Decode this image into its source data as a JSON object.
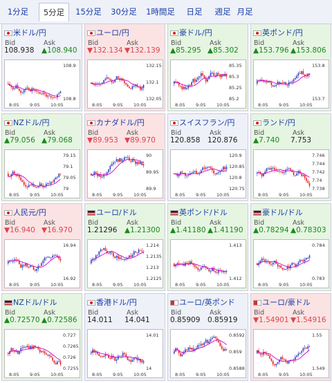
{
  "tabs": [
    "1分足",
    "5分足",
    "15分足",
    "30分足",
    "1時間足",
    "日足",
    "週足",
    "月足"
  ],
  "active_tab": 1,
  "bid_label": "Bid",
  "ask_label": "Ask",
  "colors": {
    "up": "#1a8a1a",
    "down": "#e0434a",
    "candle_up": "#2a3fb8",
    "candle_down": "#e02020",
    "ma": "#d000d0"
  },
  "panels": [
    {
      "title": "米ドル/円",
      "flag": "jp",
      "trend": "flat",
      "bid": "108.938",
      "ask": "▲108.940",
      "bid_dir": "flat",
      "ask_dir": "up",
      "ticks": [
        "108.9",
        "108.8"
      ],
      "seed": 1,
      "xticks": [
        "8:05",
        "9:05",
        "10:05"
      ]
    },
    {
      "title": "ユーロ/円",
      "flag": "jp",
      "trend": "down",
      "bid": "▼132.134",
      "ask": "▼132.139",
      "bid_dir": "down",
      "ask_dir": "down",
      "ticks": [
        "132.15",
        "132.1",
        "132.05"
      ],
      "seed": 2,
      "xticks": [
        "8:05",
        "9:05",
        "10:05"
      ]
    },
    {
      "title": "豪ドル/円",
      "flag": "jp",
      "trend": "up",
      "bid": "▲85.295",
      "ask": "▲85.302",
      "bid_dir": "up",
      "ask_dir": "up",
      "ticks": [
        "85.35",
        "85.3",
        "85.25",
        "85.2"
      ],
      "seed": 3,
      "xticks": [
        "8:05",
        "9:05",
        "10:05"
      ]
    },
    {
      "title": "英ポンド/円",
      "flag": "jp",
      "trend": "up",
      "bid": "▲153.796",
      "ask": "▲153.806",
      "bid_dir": "up",
      "ask_dir": "up",
      "ticks": [
        "153.8",
        "153.7"
      ],
      "seed": 4,
      "xticks": [
        "8:05",
        "9:05",
        "10:05"
      ]
    },
    {
      "title": "NZドル/円",
      "flag": "jp",
      "trend": "up",
      "bid": "▲79.056",
      "ask": "▲79.068",
      "bid_dir": "up",
      "ask_dir": "up",
      "ticks": [
        "79.15",
        "79.1",
        "79.05",
        "79"
      ],
      "seed": 5,
      "xticks": [
        "8:05",
        "9:05",
        "10:05"
      ]
    },
    {
      "title": "カナダドル/円",
      "flag": "jp",
      "trend": "down",
      "bid": "▼89.953",
      "ask": "▼89.970",
      "bid_dir": "down",
      "ask_dir": "down",
      "ticks": [
        "90",
        "89.95",
        "89.9"
      ],
      "seed": 6,
      "xticks": [
        "8:05",
        "9:05",
        "10:05"
      ]
    },
    {
      "title": "スイスフラン/円",
      "flag": "jp",
      "trend": "flat",
      "bid": "120.858",
      "ask": "120.876",
      "bid_dir": "flat",
      "ask_dir": "flat",
      "ticks": [
        "120.9",
        "120.85",
        "120.8",
        "120.75"
      ],
      "seed": 7,
      "xticks": [
        "8:05",
        "9:05",
        "10:05"
      ]
    },
    {
      "title": "ランド/円",
      "flag": "jp",
      "trend": "up",
      "bid": "▲7.740",
      "ask": "7.753",
      "bid_dir": "up",
      "ask_dir": "flat",
      "ticks": [
        "7.746",
        "7.744",
        "7.742",
        "7.74",
        "7.738"
      ],
      "seed": 8,
      "xticks": [
        "8:05",
        "9:05",
        "10:05"
      ]
    },
    {
      "title": "人民元/円",
      "flag": "jp",
      "trend": "down",
      "bid": "▼16.940",
      "ask": "▼16.970",
      "bid_dir": "down",
      "ask_dir": "down",
      "ticks": [
        "16.94",
        "16.92"
      ],
      "seed": 9,
      "xticks": [
        "8:05",
        "9:05",
        "10:05"
      ]
    },
    {
      "title": "ユーロ/ドル",
      "flag": "us",
      "trend": "up",
      "bid": "1.21296",
      "ask": "▲1.21300",
      "bid_dir": "flat",
      "ask_dir": "up",
      "ticks": [
        "1.214",
        "1.2135",
        "1.213",
        "1.2125"
      ],
      "seed": 10,
      "xticks": [
        "8:05",
        "9:05",
        "10:05"
      ]
    },
    {
      "title": "英ポンド/ドル",
      "flag": "us",
      "trend": "up",
      "bid": "▲1.41180",
      "ask": "▲1.41190",
      "bid_dir": "up",
      "ask_dir": "up",
      "ticks": [
        "1.413",
        "1.412"
      ],
      "seed": 11,
      "xticks": [
        "8:05",
        "9:05",
        "10:05"
      ]
    },
    {
      "title": "豪ドル/ドル",
      "flag": "us",
      "trend": "up",
      "bid": "▲0.78294",
      "ask": "▲0.78303",
      "bid_dir": "up",
      "ask_dir": "up",
      "ticks": [
        "0.784",
        "0.783"
      ],
      "seed": 12,
      "xticks": [
        "8:05",
        "9:05",
        "10:05"
      ]
    },
    {
      "title": "NZドル/ドル",
      "flag": "us",
      "trend": "up",
      "bid": "▲0.72570",
      "ask": "▲0.72586",
      "bid_dir": "up",
      "ask_dir": "up",
      "ticks": [
        "0.727",
        "0.7265",
        "0.726",
        "0.7255"
      ],
      "seed": 13,
      "xticks": [
        "8:05",
        "9:05",
        "10:05"
      ]
    },
    {
      "title": "香港ドル/円",
      "flag": "jp",
      "trend": "flat",
      "bid": "14.011",
      "ask": "14.041",
      "bid_dir": "flat",
      "ask_dir": "flat",
      "ticks": [
        "14.01",
        "14"
      ],
      "seed": 14,
      "xticks": [
        "8:05",
        "9:05",
        "10:05"
      ]
    },
    {
      "title": "ユーロ/英ポンド",
      "flag": "x",
      "trend": "flat",
      "bid": "0.85909",
      "ask": "0.85919",
      "bid_dir": "flat",
      "ask_dir": "flat",
      "ticks": [
        "0.8592",
        "0.859",
        "0.8588"
      ],
      "seed": 15,
      "xticks": [
        "8:05",
        "9:05",
        "10:05"
      ]
    },
    {
      "title": "ユーロ/豪ドル",
      "flag": "x",
      "trend": "down",
      "bid": "▼1.54901",
      "ask": "▼1.54916",
      "bid_dir": "down",
      "ask_dir": "down",
      "ticks": [
        "1.55",
        "1.549"
      ],
      "seed": 16,
      "xticks": [
        "8:05",
        "9:05",
        "10:05"
      ]
    }
  ]
}
